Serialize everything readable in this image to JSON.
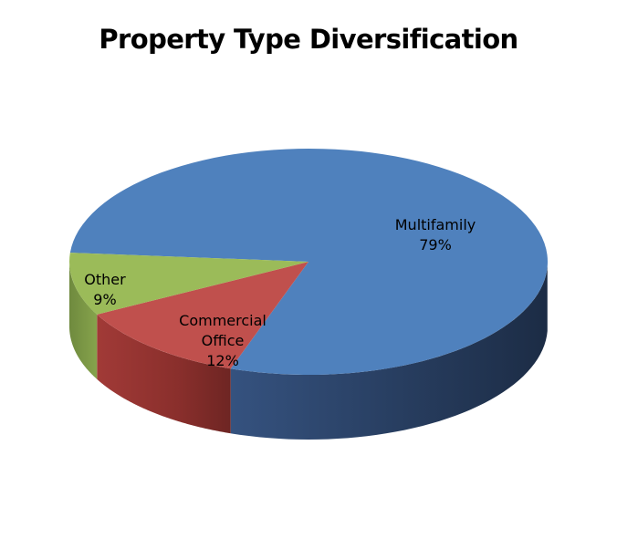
{
  "chart_data": {
    "type": "pie",
    "title": "Property Type Diversification",
    "slices": [
      {
        "name": "Multifamily",
        "label_lines": [
          "Multifamily",
          "79%"
        ],
        "value": 79,
        "color": "#4F81BD"
      },
      {
        "name": "Commercial Office",
        "label_lines": [
          "Commercial",
          "Office",
          "12%"
        ],
        "value": 12,
        "color": "#C0504D"
      },
      {
        "name": "Other",
        "label_lines": [
          "Other",
          "9%"
        ],
        "value": 9,
        "color": "#9BBB59"
      }
    ],
    "style": "3d",
    "legend": "none"
  }
}
